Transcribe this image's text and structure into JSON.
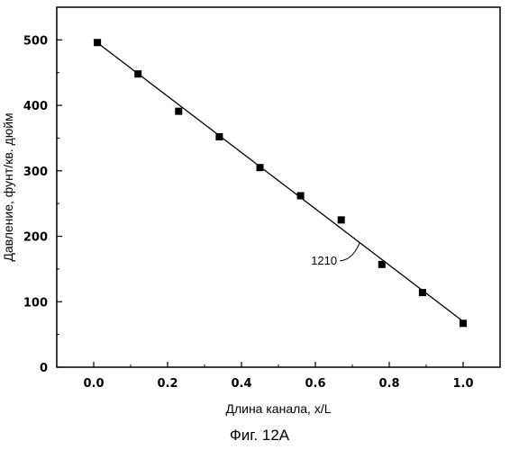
{
  "chart_data": {
    "type": "scatter",
    "xlabel": "Длина канала, x/L",
    "ylabel": "Давление, фунт/кв. дюйм",
    "xlim": [
      -0.1,
      1.1
    ],
    "ylim": [
      0,
      550
    ],
    "x_ticks": [
      "0.0",
      "0.2",
      "0.4",
      "0.6",
      "0.8",
      "1.0"
    ],
    "y_ticks": [
      "0",
      "100",
      "200",
      "300",
      "400",
      "500"
    ],
    "grid": false,
    "legend": "none",
    "series": [
      {
        "x": [
          0.01,
          0.12,
          0.23,
          0.34,
          0.45,
          0.56,
          0.67,
          0.78,
          0.89,
          1.0
        ],
        "y": [
          496,
          448,
          391,
          352,
          305,
          262,
          225,
          157,
          114,
          67
        ]
      }
    ],
    "fit_line": {
      "x": [
        0.0,
        1.0
      ],
      "y": [
        500,
        70
      ]
    },
    "annotation": {
      "text": "1210",
      "target_x": 0.72,
      "target_y": 190
    }
  },
  "caption": "Фиг. 12А"
}
